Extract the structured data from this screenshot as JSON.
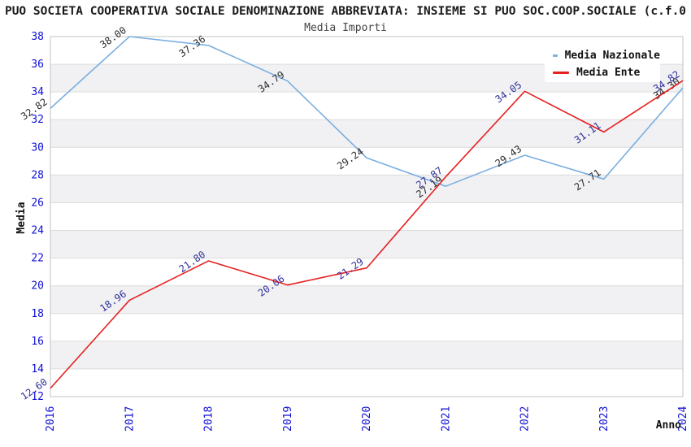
{
  "header": {
    "title": "PUO SOCIETA COOPERATIVA SOCIALE DENOMINAZIONE ABBREVIATA: INSIEME SI PUO SOC.COOP.SOCIALE (c.f.0",
    "subtitle": "Media Importi"
  },
  "legend": {
    "items": [
      {
        "label": "Media Nazionale",
        "color": "#7aafe0"
      },
      {
        "label": "Media Ente",
        "color": "#e62020"
      }
    ]
  },
  "axes": {
    "y_title": "Media",
    "x_title": "Anno",
    "y_ticks": [
      38,
      36,
      34,
      32,
      30,
      28,
      26,
      24,
      22,
      20,
      18,
      16,
      14,
      12
    ],
    "x_ticks": [
      "2016",
      "2017",
      "2018",
      "2019",
      "2020",
      "2021",
      "2022",
      "2023",
      "2024"
    ],
    "tick_color": "#0f0fd6"
  },
  "colors": {
    "band_fill": "#f1f1f3",
    "grid_line": "#dcdcdc",
    "plot_border": "#c3c3c3",
    "title_text": "#1a1a1a",
    "subtitle_text": "#444444"
  },
  "chart_data": {
    "type": "line",
    "title": "Media Importi",
    "xlabel": "Anno",
    "ylabel": "Media",
    "x": [
      2016,
      2017,
      2018,
      2019,
      2020,
      2021,
      2022,
      2023,
      2024
    ],
    "ylim": [
      12,
      38
    ],
    "y_tick_step": 2,
    "grid": "horizontal-bands-alternating",
    "legend_position": "top-right-inside",
    "series": [
      {
        "name": "Media Nazionale",
        "color": "#7aafe0",
        "label_color": "#2b2b2b",
        "values": [
          32.82,
          38.0,
          37.36,
          34.79,
          29.24,
          27.19,
          29.43,
          27.71,
          34.3
        ]
      },
      {
        "name": "Media Ente",
        "color": "#e62020",
        "label_color": "#30309a",
        "values": [
          12.6,
          18.96,
          21.8,
          20.06,
          21.29,
          27.87,
          34.05,
          31.11,
          34.82
        ]
      }
    ]
  }
}
